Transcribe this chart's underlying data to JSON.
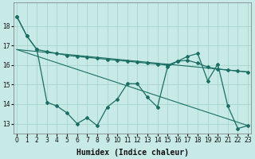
{
  "xlabel": "Humidex (Indice chaleur)",
  "background_color": "#c8eae6",
  "grid_color": "#a8d5cf",
  "line_color": "#1a6e64",
  "line1_y": [
    18.5,
    17.5,
    16.8,
    16.7,
    16.6,
    16.5,
    16.45,
    16.4,
    16.35,
    16.3,
    16.25,
    16.2,
    16.15,
    16.1,
    16.05,
    16.0,
    16.2,
    16.25,
    16.1,
    15.9,
    15.8,
    15.75,
    15.7,
    15.65
  ],
  "line2_y": [
    18.5,
    17.5,
    16.8,
    14.1,
    13.9,
    13.55,
    13.0,
    13.3,
    12.9,
    13.85,
    14.25,
    15.05,
    15.05,
    14.35,
    13.85,
    15.9,
    16.2,
    16.45,
    16.6,
    15.2,
    16.05,
    13.9,
    12.75,
    12.9
  ],
  "xlim": [
    0,
    23
  ],
  "ylim": [
    12.5,
    19.2
  ],
  "yticks": [
    13,
    14,
    15,
    16,
    17,
    18
  ],
  "xticks": [
    0,
    1,
    2,
    3,
    4,
    5,
    6,
    7,
    8,
    9,
    10,
    11,
    12,
    13,
    14,
    15,
    16,
    17,
    18,
    19,
    20,
    21,
    22,
    23
  ],
  "xlabel_fontsize": 7,
  "tick_fontsize": 5.5
}
